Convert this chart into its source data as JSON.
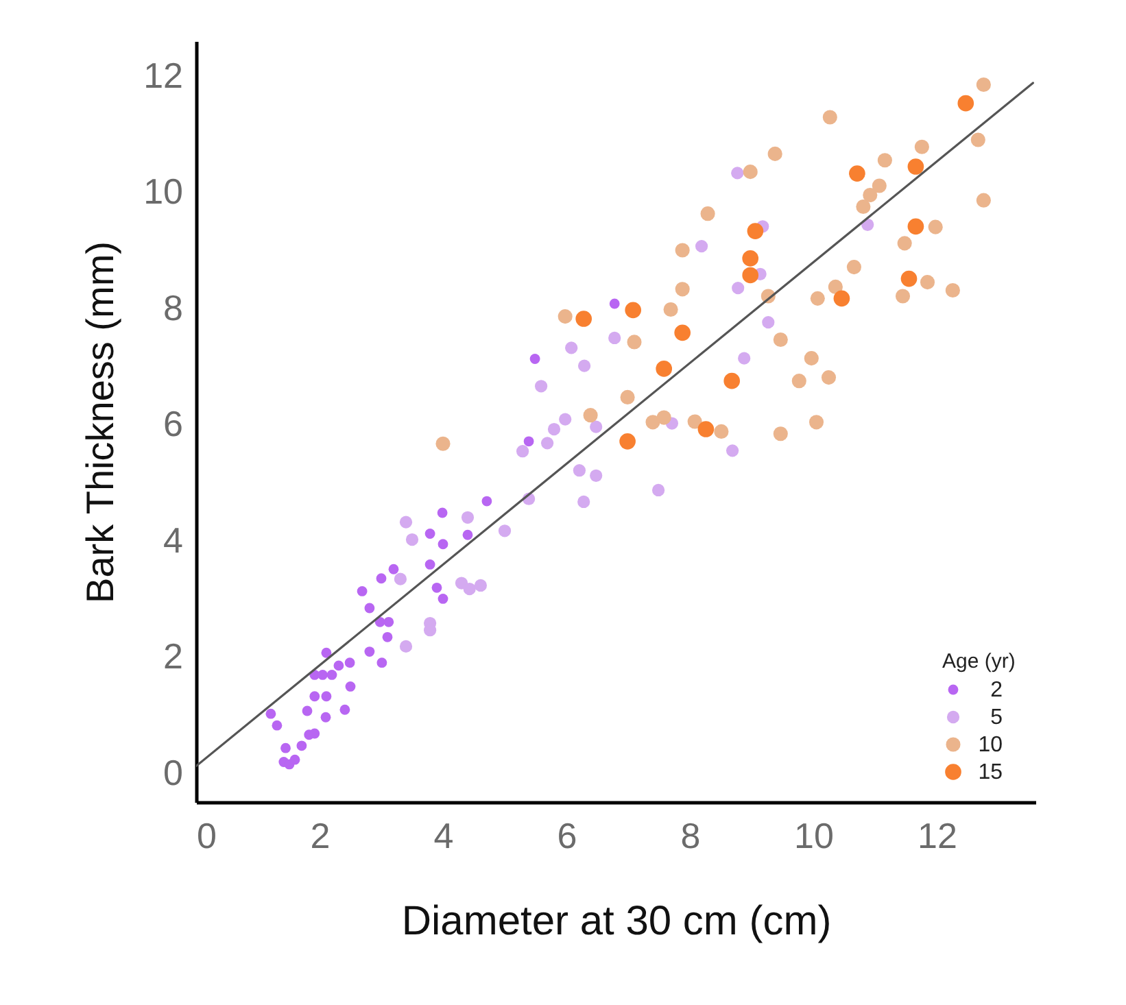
{
  "chart_data": {
    "type": "scatter",
    "xlabel": "Diameter at 30 cm (cm)",
    "ylabel": "Bark Thickness (mm)",
    "legend_title": "Age (yr)",
    "legend": "bottom right",
    "xlim": [
      0,
      13.6
    ],
    "ylim": [
      -0.5,
      12.6
    ],
    "xticks": [
      0,
      2,
      4,
      6,
      8,
      10,
      12
    ],
    "yticks": [
      0,
      2,
      4,
      6,
      8,
      10,
      12
    ],
    "series": [
      {
        "name": "2",
        "color": "#b866f2",
        "marker": "circle",
        "x": [
          1.21,
          1.31,
          1.45,
          1.42,
          1.51,
          1.6,
          1.71,
          1.83,
          1.92,
          1.8,
          2.1,
          1.92,
          2.11,
          2.41,
          2.5,
          2.11,
          1.92,
          2.05,
          2.2,
          2.31,
          2.49,
          2.81,
          3.01,
          3.1,
          2.98,
          3.12,
          2.81,
          2.69,
          3.0,
          3.2,
          3.79,
          3.9,
          4.0,
          3.79,
          4.0,
          3.99,
          4.4,
          4.71,
          5.39,
          5.49,
          6.78
        ],
        "values": [
          1.02,
          0.82,
          0.43,
          0.19,
          0.15,
          0.23,
          0.47,
          0.66,
          0.68,
          1.07,
          0.96,
          1.32,
          1.32,
          1.09,
          1.49,
          2.07,
          1.69,
          1.69,
          1.69,
          1.85,
          1.9,
          2.09,
          1.9,
          2.34,
          2.6,
          2.6,
          2.84,
          3.13,
          3.35,
          3.51,
          3.59,
          3.19,
          3.0,
          4.12,
          3.94,
          4.48,
          4.1,
          4.68,
          5.71,
          7.13,
          8.08
        ]
      },
      {
        "name": "5",
        "color": "#d4aaf0",
        "marker": "circle",
        "x": [
          3.4,
          3.5,
          3.31,
          3.4,
          3.79,
          3.79,
          4.3,
          4.43,
          4.61,
          4.4,
          5.0,
          5.39,
          5.29,
          5.69,
          5.8,
          5.98,
          6.48,
          6.21,
          6.48,
          6.28,
          6.08,
          6.29,
          5.59,
          6.78,
          8.77,
          8.19,
          8.78,
          9.27,
          8.88,
          10.88,
          9.18,
          9.14,
          8.69,
          7.49,
          7.71
        ],
        "values": [
          4.32,
          4.02,
          3.34,
          2.18,
          2.58,
          2.46,
          3.27,
          3.17,
          3.23,
          4.4,
          4.17,
          4.72,
          5.54,
          5.68,
          5.92,
          6.09,
          5.96,
          5.21,
          5.12,
          4.67,
          7.32,
          7.01,
          6.66,
          7.49,
          10.33,
          9.07,
          8.35,
          7.76,
          7.14,
          9.44,
          9.41,
          8.59,
          5.55,
          4.87,
          6.02
        ]
      },
      {
        "name": "10",
        "color": "#ebb48c",
        "marker": "circle",
        "x": [
          5.98,
          7.1,
          6.99,
          6.39,
          4.0,
          7.69,
          7.88,
          7.88,
          8.29,
          8.98,
          9.38,
          10.27,
          11.16,
          11.07,
          10.92,
          10.81,
          11.76,
          12.67,
          12.76,
          12.76,
          11.98,
          11.48,
          10.66,
          10.36,
          10.07,
          9.27,
          9.47,
          9.97,
          10.25,
          9.77,
          11.85,
          12.26,
          11.45,
          10.05,
          7.4,
          8.08,
          7.58,
          8.51,
          9.47
        ],
        "values": [
          7.86,
          7.42,
          6.47,
          6.16,
          5.67,
          7.98,
          8.33,
          9.0,
          9.63,
          10.35,
          10.66,
          11.29,
          10.55,
          10.11,
          9.95,
          9.75,
          10.78,
          10.9,
          11.85,
          9.86,
          9.4,
          9.12,
          8.71,
          8.37,
          8.17,
          8.21,
          7.46,
          7.14,
          6.81,
          6.75,
          8.45,
          8.31,
          8.21,
          6.04,
          6.04,
          6.05,
          6.12,
          5.88,
          5.84
        ]
      },
      {
        "name": "15",
        "color": "#f88030",
        "marker": "circle",
        "x": [
          6.28,
          7.08,
          7.88,
          7.58,
          8.68,
          9.06,
          8.98,
          8.98,
          10.71,
          11.66,
          12.47,
          11.66,
          11.55,
          10.46,
          6.99,
          8.26
        ],
        "values": [
          7.82,
          7.97,
          7.58,
          6.96,
          6.75,
          9.33,
          8.86,
          8.57,
          10.32,
          10.44,
          11.53,
          9.41,
          8.51,
          8.17,
          5.71,
          5.92
        ]
      },
      {
        "type": "line",
        "color": "#555555",
        "marker": "none",
        "x": [
          0,
          13.56
        ],
        "values": [
          0.12,
          11.88
        ]
      }
    ]
  }
}
